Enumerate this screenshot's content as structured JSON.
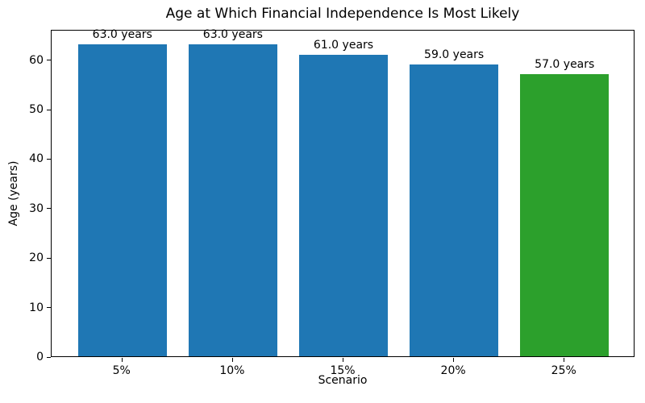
{
  "chart_data": {
    "type": "bar",
    "title": "Age at Which Financial Independence Is Most Likely",
    "xlabel": "Scenario",
    "ylabel": "Age (years)",
    "categories": [
      "5%",
      "10%",
      "15%",
      "20%",
      "25%"
    ],
    "values": [
      63.0,
      63.0,
      61.0,
      59.0,
      57.0
    ],
    "bar_labels": [
      "63.0 years",
      "63.0 years",
      "61.0 years",
      "59.0 years",
      "57.0 years"
    ],
    "bar_colors": [
      "#1f77b4",
      "#1f77b4",
      "#1f77b4",
      "#1f77b4",
      "#2ca02c"
    ],
    "default_color": "#1f77b4",
    "highlight_color": "#2ca02c",
    "ylim": [
      0,
      66.15
    ],
    "yticks": [
      0,
      10,
      20,
      30,
      40,
      50,
      60
    ],
    "grid": "off",
    "legend": "none"
  }
}
